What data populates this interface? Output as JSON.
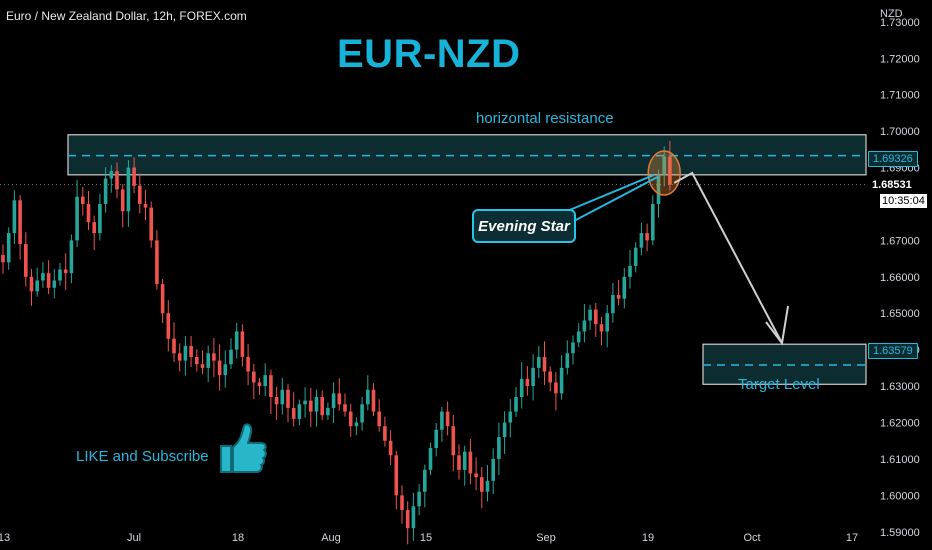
{
  "header": {
    "symbol_line": "Euro / New Zealand Dollar, 12h, FOREX.com",
    "currency": "NZD"
  },
  "annotations": {
    "title": "EUR-NZD",
    "resistance_label": "horizontal resistance",
    "pattern_label": "Evening Star",
    "target_label": "Target Level",
    "cta": "LIKE and Subscribe"
  },
  "colors": {
    "up": "#26a69a",
    "down": "#ef5350",
    "accent": "#25b8df",
    "zone_fill": "#0c2c30",
    "zone_border": "#d0d0d0",
    "background": "#000000"
  },
  "icons": {
    "cta_icon": "thumbs-up-icon",
    "pattern_marker": "circle-highlight-icon"
  },
  "price_tags": {
    "resistance": "1.69326",
    "last_price": "1.68531",
    "countdown": "10:35:04",
    "target": "1.63579"
  },
  "chart_data": {
    "type": "candlestick",
    "title": "EUR-NZD",
    "ylim": [
      1.585,
      1.736
    ],
    "y_ticks": [
      "1.73000",
      "1.72000",
      "1.71000",
      "1.70000",
      "1.69000",
      "1.68000",
      "1.67000",
      "1.66000",
      "1.65000",
      "1.64000",
      "1.63000",
      "1.62000",
      "1.61000",
      "1.60000",
      "1.59000"
    ],
    "x_ticks": [
      "13",
      "Jul",
      "18",
      "Aug",
      "15",
      "Sep",
      "19",
      "Oct",
      "17"
    ],
    "resistance_zone": [
      1.688,
      1.699
    ],
    "resistance_level": 1.69326,
    "target_zone": [
      1.6305,
      1.6415
    ],
    "target_level": 1.63579,
    "last_price": 1.68531,
    "closes": [
      1.664,
      1.672,
      1.681,
      1.669,
      1.66,
      1.656,
      1.659,
      1.661,
      1.657,
      1.659,
      1.662,
      1.661,
      1.67,
      1.682,
      1.68,
      1.675,
      1.672,
      1.68,
      1.687,
      1.689,
      1.684,
      1.678,
      1.69,
      1.685,
      1.68,
      1.679,
      1.67,
      1.658,
      1.65,
      1.643,
      1.639,
      1.637,
      1.641,
      1.638,
      1.636,
      1.635,
      1.639,
      1.637,
      1.633,
      1.636,
      1.64,
      1.645,
      1.638,
      1.634,
      1.631,
      1.63,
      1.633,
      1.627,
      1.625,
      1.629,
      1.624,
      1.621,
      1.625,
      1.626,
      1.623,
      1.627,
      1.622,
      1.624,
      1.628,
      1.625,
      1.623,
      1.619,
      1.62,
      1.625,
      1.629,
      1.623,
      1.619,
      1.615,
      1.611,
      1.6,
      1.596,
      1.591,
      1.597,
      1.601,
      1.607,
      1.613,
      1.618,
      1.623,
      1.619,
      1.611,
      1.607,
      1.612,
      1.606,
      1.605,
      1.601,
      1.604,
      1.61,
      1.616,
      1.62,
      1.623,
      1.627,
      1.632,
      1.63,
      1.635,
      1.638,
      1.634,
      1.631,
      1.628,
      1.635,
      1.639,
      1.642,
      1.645,
      1.648,
      1.651,
      1.647,
      1.645,
      1.65,
      1.655,
      1.654,
      1.66,
      1.663,
      1.668,
      1.672,
      1.67,
      1.68,
      1.688,
      1.693,
      1.6853
    ]
  }
}
